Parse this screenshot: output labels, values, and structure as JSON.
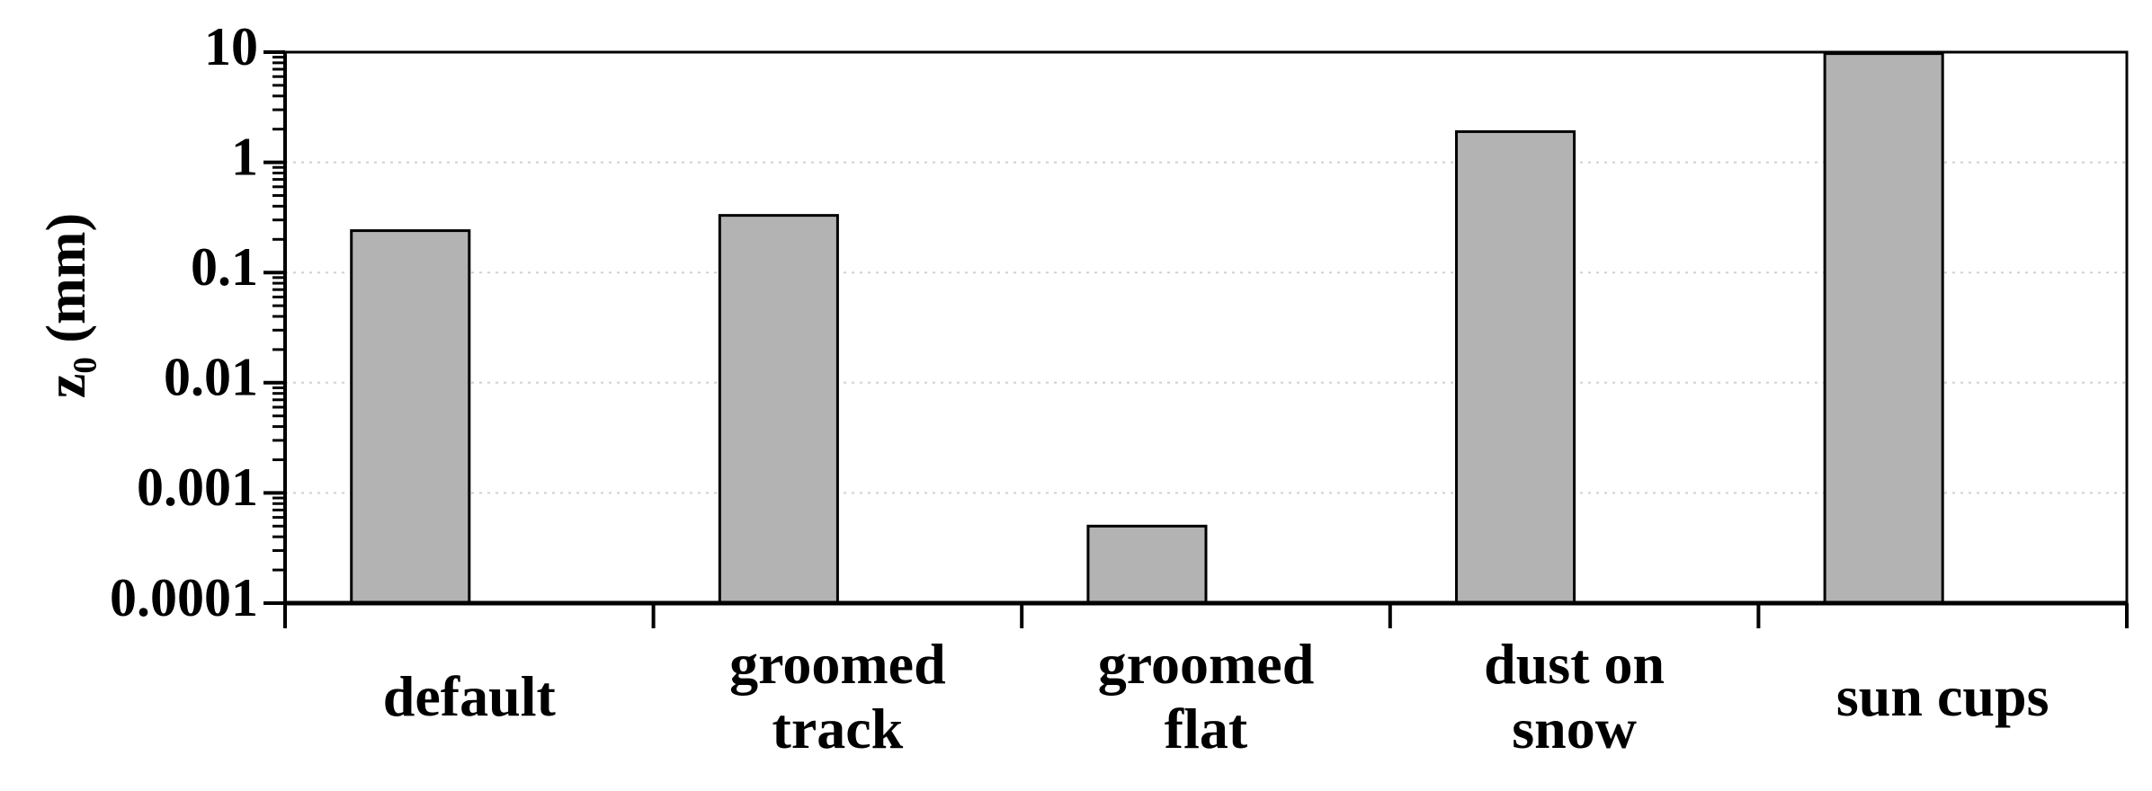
{
  "chart_data": {
    "type": "bar",
    "ylabel": "z₀ (mm)",
    "categories": [
      "default",
      "groomed track",
      "groomed flat",
      "dust on snow",
      "sun cups"
    ],
    "values": [
      0.24,
      0.33,
      0.0005,
      1.9,
      9.7
    ],
    "color": "#b3b3b3",
    "ylim": [
      0.0001,
      10
    ],
    "yticks": [
      0.0001,
      0.001,
      0.01,
      0.1,
      1,
      10
    ],
    "log_scale": true,
    "grid": true
  }
}
